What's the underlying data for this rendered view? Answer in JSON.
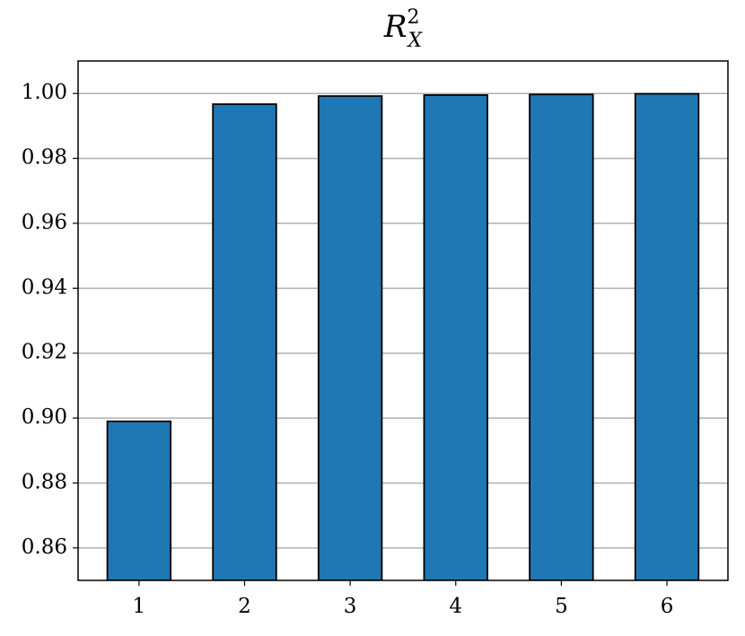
{
  "chart_data": {
    "type": "bar",
    "title": "R",
    "title_superscript": "2",
    "title_subscript": "X",
    "categories": [
      "1",
      "2",
      "3",
      "4",
      "5",
      "6"
    ],
    "values": [
      0.899,
      0.9967,
      0.9992,
      0.9995,
      0.9997,
      0.9999
    ],
    "color": "#1f77b4",
    "edgecolor": "#000000",
    "ylim": [
      0.85,
      1.01
    ],
    "yticks": [
      {
        "value": 0.86,
        "label": "0.86"
      },
      {
        "value": 0.88,
        "label": "0.88"
      },
      {
        "value": 0.9,
        "label": "0.90"
      },
      {
        "value": 0.92,
        "label": "0.92"
      },
      {
        "value": 0.94,
        "label": "0.94"
      },
      {
        "value": 0.96,
        "label": "0.96"
      },
      {
        "value": 0.98,
        "label": "0.98"
      },
      {
        "value": 1.0,
        "label": "1.00"
      }
    ],
    "grid": true
  }
}
